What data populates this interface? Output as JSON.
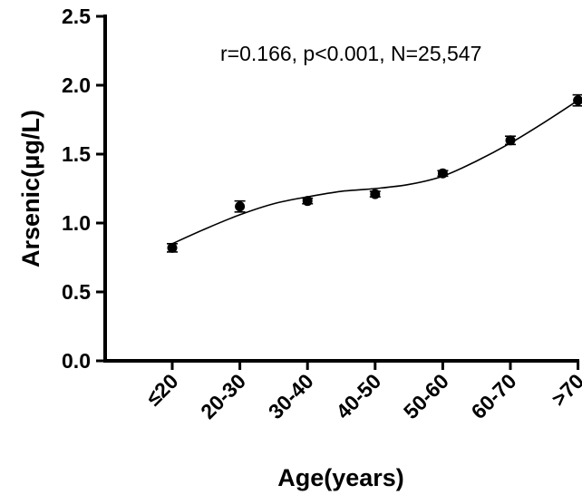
{
  "chart_data": {
    "type": "scatter",
    "categories": [
      "≤20",
      "20-30",
      "30-40",
      "40-50",
      "50-60",
      "60-70",
      ">70"
    ],
    "values": [
      0.82,
      1.12,
      1.16,
      1.21,
      1.36,
      1.6,
      1.89
    ],
    "errors": [
      0.03,
      0.04,
      0.02,
      0.02,
      0.02,
      0.03,
      0.04
    ],
    "fit_curve": [
      [
        0,
        0.85
      ],
      [
        0.5,
        0.96
      ],
      [
        1,
        1.06
      ],
      [
        1.5,
        1.14
      ],
      [
        2,
        1.19
      ],
      [
        2.5,
        1.23
      ],
      [
        3,
        1.25
      ],
      [
        3.5,
        1.28
      ],
      [
        4,
        1.34
      ],
      [
        4.5,
        1.45
      ],
      [
        5,
        1.58
      ],
      [
        5.5,
        1.73
      ],
      [
        6,
        1.89
      ]
    ],
    "xlabel": "Age(years)",
    "ylabel": "Arsenic(μg/L)",
    "annotation": "r=0.166, p<0.001, N=25,547",
    "ylim": [
      0,
      2.5
    ],
    "yticks": [
      "0.0",
      "0.5",
      "1.0",
      "1.5",
      "2.0",
      "2.5"
    ],
    "grid": false
  }
}
